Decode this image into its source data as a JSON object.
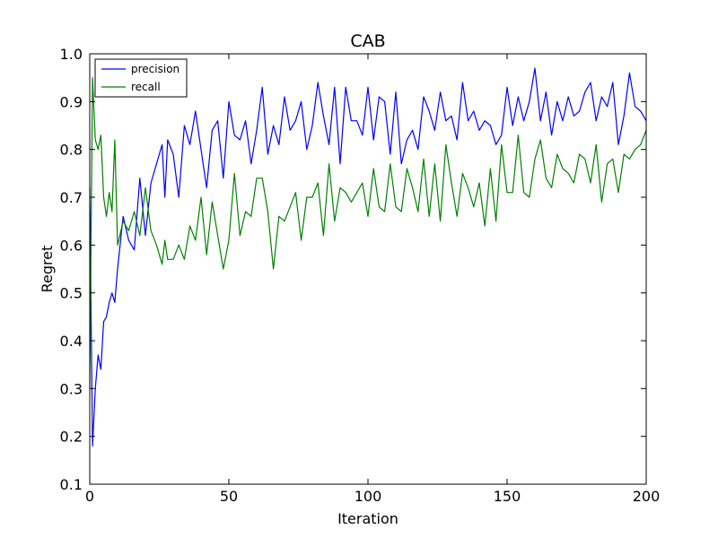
{
  "chart_data": {
    "type": "line",
    "title": "CAB",
    "xlabel": "Iteration",
    "ylabel": "Regret",
    "xlim": [
      0,
      200
    ],
    "ylim": [
      0.1,
      1.0
    ],
    "xticks": [
      "0",
      "50",
      "100",
      "150",
      "200"
    ],
    "yticks": [
      "0.1",
      "0.2",
      "0.3",
      "0.4",
      "0.5",
      "0.6",
      "0.7",
      "0.8",
      "0.9",
      "1.0"
    ],
    "grid": false,
    "legend_position": "top-left",
    "series": [
      {
        "name": "precision",
        "color": "#0000ff",
        "x": [
          0,
          1,
          2,
          3,
          4,
          5,
          6,
          7,
          8,
          9,
          10,
          12,
          14,
          16,
          18,
          20,
          22,
          24,
          26,
          27,
          28,
          30,
          32,
          34,
          36,
          38,
          40,
          42,
          44,
          46,
          48,
          50,
          52,
          54,
          56,
          58,
          60,
          62,
          64,
          66,
          68,
          70,
          72,
          74,
          76,
          78,
          80,
          82,
          84,
          86,
          88,
          90,
          92,
          94,
          96,
          98,
          100,
          102,
          104,
          106,
          108,
          110,
          112,
          114,
          116,
          118,
          120,
          122,
          124,
          126,
          128,
          130,
          132,
          134,
          136,
          138,
          140,
          142,
          144,
          146,
          148,
          150,
          152,
          154,
          156,
          158,
          160,
          162,
          164,
          166,
          168,
          170,
          172,
          174,
          176,
          178,
          180,
          182,
          184,
          186,
          188,
          190,
          192,
          194,
          196,
          198,
          200
        ],
        "values": [
          0.72,
          0.18,
          0.3,
          0.37,
          0.34,
          0.44,
          0.45,
          0.48,
          0.5,
          0.48,
          0.55,
          0.66,
          0.61,
          0.59,
          0.74,
          0.62,
          0.73,
          0.77,
          0.81,
          0.7,
          0.82,
          0.79,
          0.7,
          0.85,
          0.81,
          0.88,
          0.8,
          0.72,
          0.84,
          0.86,
          0.74,
          0.9,
          0.83,
          0.82,
          0.86,
          0.77,
          0.84,
          0.93,
          0.79,
          0.85,
          0.81,
          0.91,
          0.84,
          0.86,
          0.9,
          0.8,
          0.85,
          0.94,
          0.87,
          0.81,
          0.93,
          0.77,
          0.93,
          0.86,
          0.86,
          0.83,
          0.93,
          0.82,
          0.91,
          0.9,
          0.79,
          0.92,
          0.77,
          0.82,
          0.84,
          0.8,
          0.91,
          0.88,
          0.84,
          0.92,
          0.86,
          0.87,
          0.82,
          0.94,
          0.86,
          0.88,
          0.84,
          0.86,
          0.85,
          0.81,
          0.83,
          0.93,
          0.85,
          0.91,
          0.86,
          0.9,
          0.97,
          0.86,
          0.92,
          0.83,
          0.9,
          0.86,
          0.91,
          0.87,
          0.88,
          0.92,
          0.94,
          0.86,
          0.91,
          0.89,
          0.94,
          0.81,
          0.87,
          0.96,
          0.89,
          0.88,
          0.86
        ]
      },
      {
        "name": "recall",
        "color": "#008000",
        "x": [
          0,
          1,
          2,
          3,
          4,
          5,
          6,
          7,
          8,
          9,
          10,
          12,
          14,
          16,
          18,
          20,
          22,
          24,
          26,
          27,
          28,
          30,
          32,
          34,
          36,
          38,
          40,
          42,
          44,
          46,
          48,
          50,
          52,
          54,
          56,
          58,
          60,
          62,
          64,
          66,
          68,
          70,
          72,
          74,
          76,
          78,
          80,
          82,
          84,
          86,
          88,
          90,
          92,
          94,
          96,
          98,
          100,
          102,
          104,
          106,
          108,
          110,
          112,
          114,
          116,
          118,
          120,
          122,
          124,
          126,
          128,
          130,
          132,
          134,
          136,
          138,
          140,
          142,
          144,
          146,
          148,
          150,
          152,
          154,
          156,
          158,
          160,
          162,
          164,
          166,
          168,
          170,
          172,
          174,
          176,
          178,
          180,
          182,
          184,
          186,
          188,
          190,
          192,
          194,
          196,
          198,
          200
        ],
        "values": [
          0.3,
          0.95,
          0.82,
          0.8,
          0.83,
          0.7,
          0.66,
          0.71,
          0.67,
          0.82,
          0.6,
          0.65,
          0.63,
          0.67,
          0.62,
          0.72,
          0.63,
          0.6,
          0.56,
          0.61,
          0.57,
          0.57,
          0.6,
          0.57,
          0.64,
          0.61,
          0.7,
          0.58,
          0.69,
          0.62,
          0.55,
          0.61,
          0.75,
          0.62,
          0.67,
          0.66,
          0.74,
          0.74,
          0.67,
          0.55,
          0.66,
          0.65,
          0.68,
          0.71,
          0.61,
          0.7,
          0.7,
          0.73,
          0.62,
          0.77,
          0.65,
          0.72,
          0.71,
          0.69,
          0.71,
          0.73,
          0.66,
          0.76,
          0.68,
          0.67,
          0.77,
          0.68,
          0.67,
          0.76,
          0.72,
          0.67,
          0.78,
          0.66,
          0.77,
          0.65,
          0.81,
          0.73,
          0.66,
          0.75,
          0.72,
          0.68,
          0.73,
          0.64,
          0.76,
          0.65,
          0.81,
          0.71,
          0.71,
          0.83,
          0.71,
          0.7,
          0.78,
          0.82,
          0.74,
          0.72,
          0.79,
          0.76,
          0.75,
          0.73,
          0.79,
          0.78,
          0.73,
          0.81,
          0.69,
          0.77,
          0.78,
          0.71,
          0.79,
          0.78,
          0.8,
          0.81,
          0.84
        ]
      }
    ]
  }
}
